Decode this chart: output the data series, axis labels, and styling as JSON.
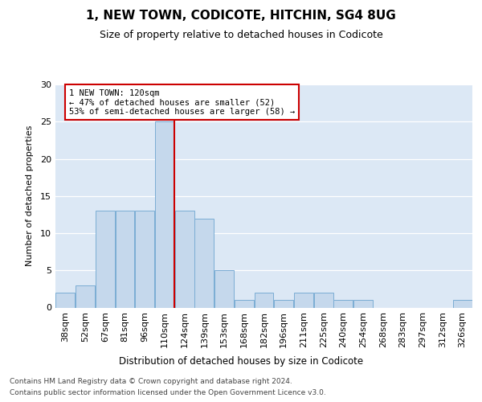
{
  "title": "1, NEW TOWN, CODICOTE, HITCHIN, SG4 8UG",
  "subtitle": "Size of property relative to detached houses in Codicote",
  "xlabel": "Distribution of detached houses by size in Codicote",
  "ylabel": "Number of detached properties",
  "categories": [
    "38sqm",
    "52sqm",
    "67sqm",
    "81sqm",
    "96sqm",
    "110sqm",
    "124sqm",
    "139sqm",
    "153sqm",
    "168sqm",
    "182sqm",
    "196sqm",
    "211sqm",
    "225sqm",
    "240sqm",
    "254sqm",
    "268sqm",
    "283sqm",
    "297sqm",
    "312sqm",
    "326sqm"
  ],
  "values": [
    2,
    3,
    13,
    13,
    13,
    25,
    13,
    12,
    5,
    1,
    2,
    1,
    2,
    2,
    1,
    1,
    0,
    0,
    0,
    0,
    1
  ],
  "bar_color": "#c5d8ec",
  "bar_edgecolor": "#7badd4",
  "vline_color": "#cc0000",
  "vline_x_idx": 5.5,
  "property_label": "1 NEW TOWN: 120sqm",
  "annotation_line1": "← 47% of detached houses are smaller (52)",
  "annotation_line2": "53% of semi-detached houses are larger (58) →",
  "ylim": [
    0,
    30
  ],
  "yticks": [
    0,
    5,
    10,
    15,
    20,
    25,
    30
  ],
  "plot_bg": "#dce8f5",
  "footnote1": "Contains HM Land Registry data © Crown copyright and database right 2024.",
  "footnote2": "Contains public sector information licensed under the Open Government Licence v3.0."
}
